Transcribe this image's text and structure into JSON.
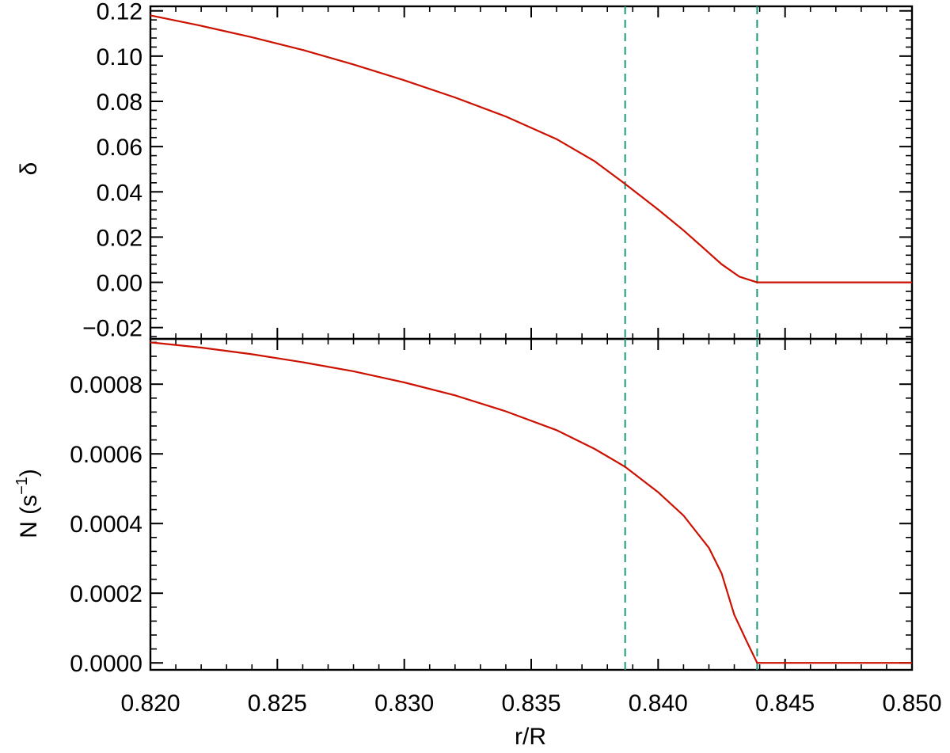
{
  "chart_data": [
    {
      "type": "line",
      "panel": "top",
      "title": "",
      "xlabel": "",
      "ylabel": "δ",
      "xlim": [
        0.82,
        0.85
      ],
      "ylim": [
        -0.025,
        0.122
      ],
      "y_ticks": [
        -0.02,
        0.0,
        0.02,
        0.04,
        0.06,
        0.08,
        0.1,
        0.12
      ],
      "y_tick_labels": [
        "−0.02",
        "0.00",
        "0.02",
        "0.04",
        "0.06",
        "0.08",
        "0.10",
        "0.12"
      ],
      "grid": false,
      "series": [
        {
          "color": "#cc1100",
          "x": [
            0.82,
            0.822,
            0.824,
            0.826,
            0.828,
            0.83,
            0.832,
            0.834,
            0.836,
            0.8375,
            0.8387,
            0.84,
            0.841,
            0.842,
            0.8425,
            0.8432,
            0.8439,
            0.845,
            0.85
          ],
          "y": [
            0.118,
            0.1134,
            0.1083,
            0.1027,
            0.0963,
            0.0893,
            0.0817,
            0.0733,
            0.0633,
            0.0535,
            0.0435,
            0.0322,
            0.023,
            0.013,
            0.008,
            0.0025,
            0.0,
            0.0,
            0.0
          ]
        }
      ],
      "vlines": [
        {
          "x": 0.8387,
          "style": "dashed",
          "color": "#1a9a7a"
        },
        {
          "x": 0.8439,
          "style": "dashed",
          "color": "#1a9a7a"
        }
      ]
    },
    {
      "type": "line",
      "panel": "bottom",
      "title": "",
      "xlabel": "r/R",
      "ylabel": "N (s⁻¹)",
      "xlim": [
        0.82,
        0.85
      ],
      "ylim": [
        -2e-05,
        0.00093
      ],
      "x_ticks": [
        0.82,
        0.825,
        0.83,
        0.835,
        0.84,
        0.845,
        0.85
      ],
      "x_tick_labels": [
        "0.820",
        "0.825",
        "0.830",
        "0.835",
        "0.840",
        "0.845",
        "0.850"
      ],
      "y_ticks": [
        0.0,
        0.0002,
        0.0004,
        0.0006,
        0.0008
      ],
      "y_tick_labels": [
        "0.0000",
        "0.0002",
        "0.0004",
        "0.0006",
        "0.0008"
      ],
      "grid": false,
      "series": [
        {
          "color": "#cc1100",
          "x": [
            0.82,
            0.822,
            0.824,
            0.826,
            0.828,
            0.83,
            0.832,
            0.834,
            0.836,
            0.8375,
            0.8387,
            0.84,
            0.841,
            0.842,
            0.8425,
            0.843,
            0.8435,
            0.8439,
            0.845,
            0.85
          ],
          "y": [
            0.00092,
            0.000905,
            0.000886,
            0.000863,
            0.000837,
            0.000805,
            0.000768,
            0.000722,
            0.000668,
            0.000614,
            0.000563,
            0.00049,
            0.000423,
            0.00033,
            0.000257,
            0.000138,
            6e-05,
            0.0,
            0.0,
            0.0
          ]
        }
      ],
      "vlines": [
        {
          "x": 0.8387,
          "style": "dashed",
          "color": "#1a9a7a"
        },
        {
          "x": 0.8439,
          "style": "dashed",
          "color": "#1a9a7a"
        }
      ]
    }
  ]
}
